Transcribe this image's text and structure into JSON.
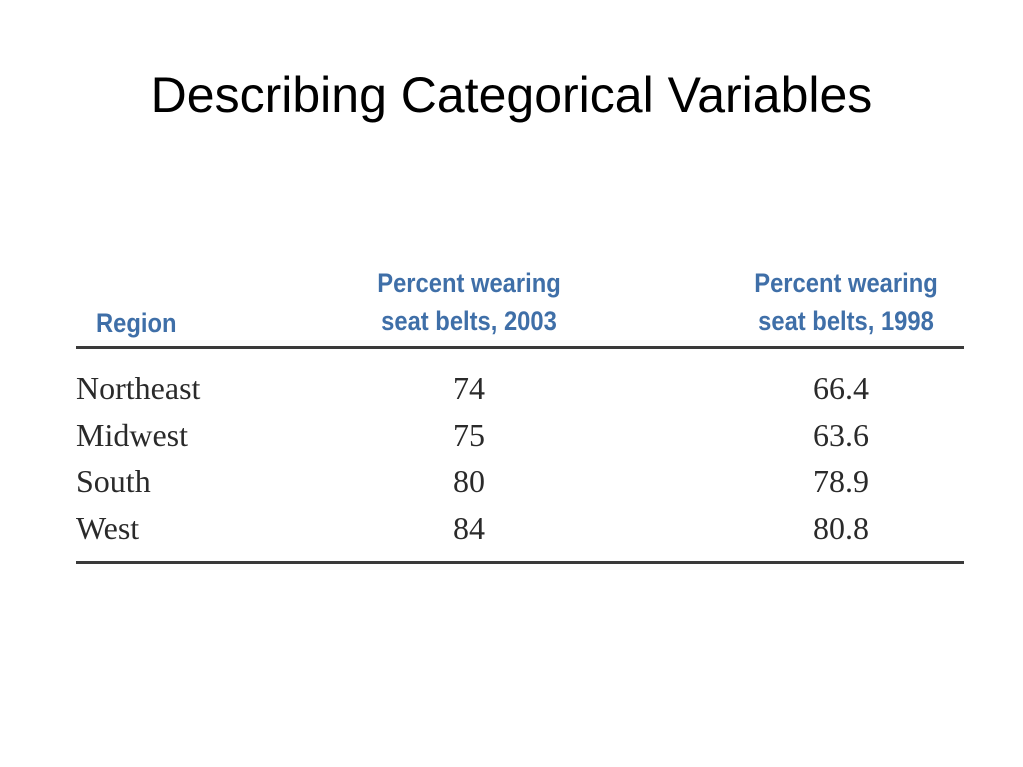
{
  "slide": {
    "title": "Describing Categorical Variables"
  },
  "table": {
    "headers": {
      "region": "Region",
      "col_2003": [
        "Percent wearing",
        "seat belts, 2003"
      ],
      "col_1998": [
        "Percent wearing",
        "seat belts, 1998"
      ]
    },
    "rows": [
      {
        "region": "Northeast",
        "v2003": "74",
        "v1998": "66.4"
      },
      {
        "region": "Midwest",
        "v2003": "75",
        "v1998": "63.6"
      },
      {
        "region": "South",
        "v2003": "80",
        "v1998": "78.9"
      },
      {
        "region": "West",
        "v2003": "84",
        "v1998": "80.8"
      }
    ],
    "header_color": "#3f6fa8",
    "rule_color": "#3a3a3a"
  }
}
